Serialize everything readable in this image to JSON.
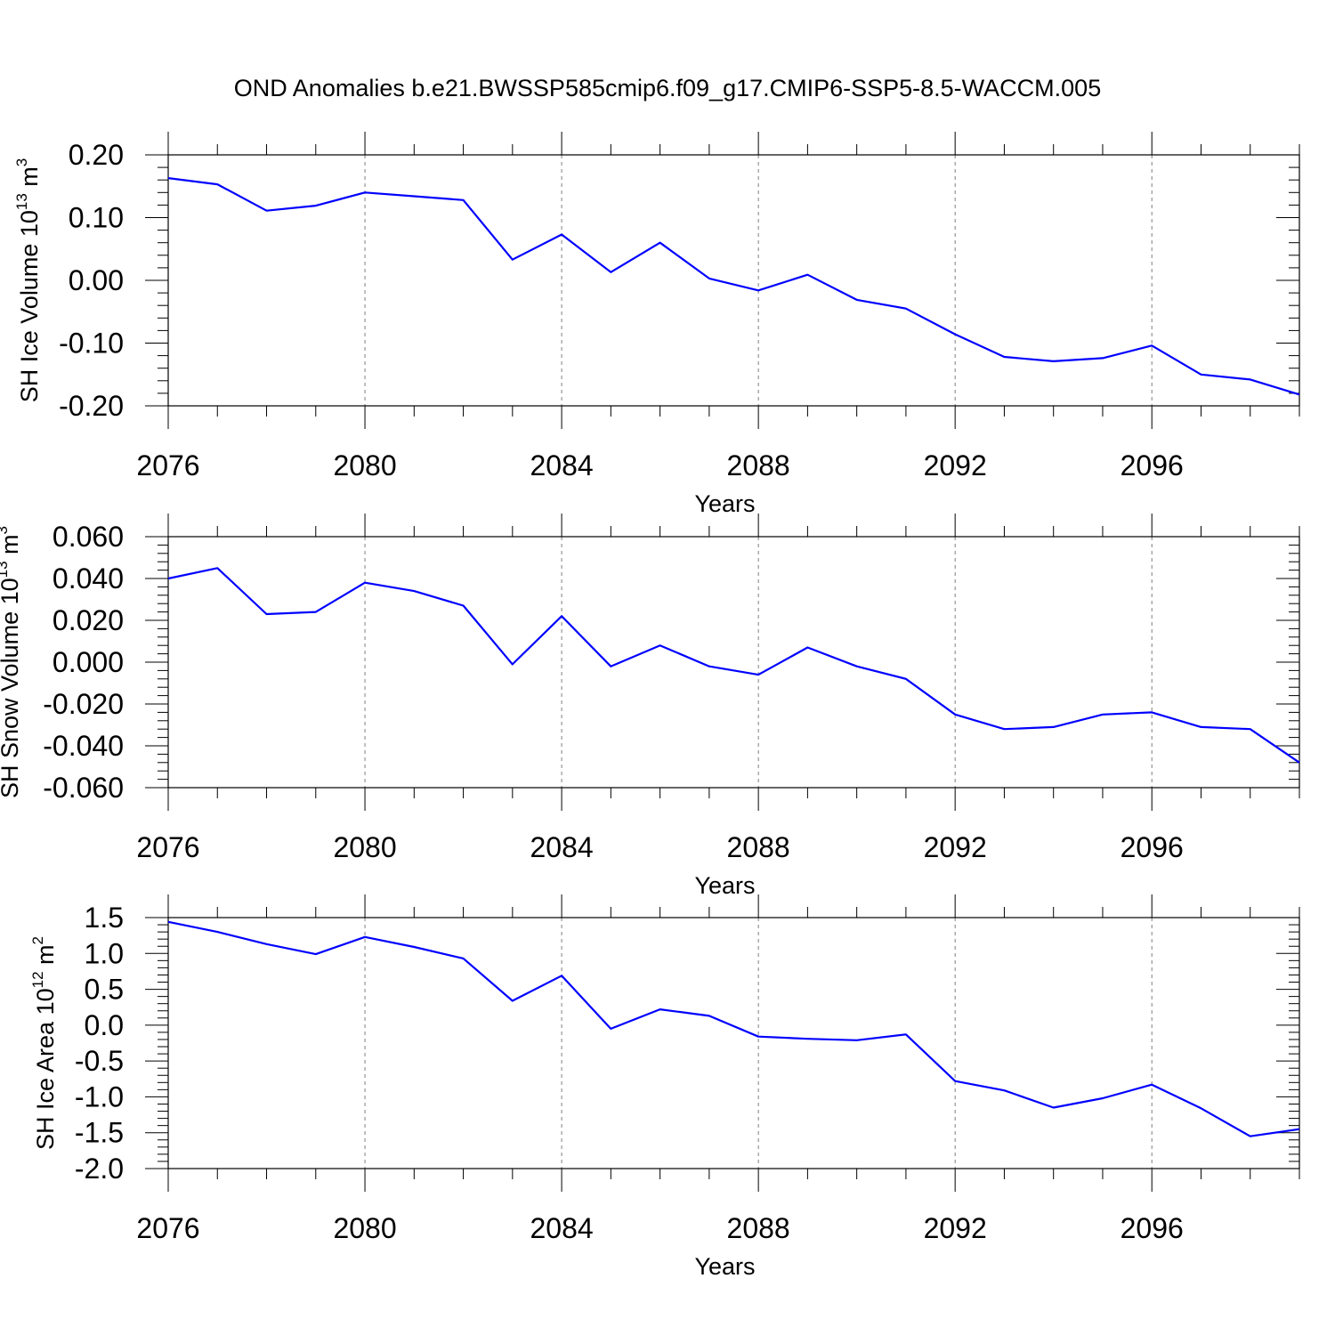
{
  "title": "OND Anomalies b.e21.BWSSP585cmip6.f09_g17.CMIP6-SSP5-8.5-WACCM.005",
  "colors": {
    "line": "#0000ff",
    "axis": "#000000",
    "grid": "#7f7f7f"
  },
  "chart_data": [
    {
      "type": "line",
      "ylabel": "SH Ice Volume",
      "ylabel_unit_base": "10",
      "ylabel_unit_exp": "13",
      "ylabel_unit_m": "m",
      "ylabel_unit_mexp": "3",
      "xlabel": "Years",
      "xlim": [
        2076,
        2099
      ],
      "ylim": [
        -0.2,
        0.2
      ],
      "x_ticks": [
        "2076",
        "2080",
        "2084",
        "2088",
        "2092",
        "2096"
      ],
      "y_ticks": [
        "0.20",
        "0.10",
        "0.00",
        "-0.10",
        "-0.20"
      ],
      "y_tick_values": [
        0.2,
        0.1,
        0.0,
        -0.1,
        -0.2
      ],
      "grid": "vertical dashed at major x ticks",
      "series": [
        {
          "x": [
            2076,
            2077,
            2078,
            2079,
            2080,
            2081,
            2082,
            2083,
            2084,
            2085,
            2086,
            2087,
            2088,
            2089,
            2090,
            2091,
            2092,
            2093,
            2094,
            2095,
            2096,
            2097,
            2098,
            2099
          ],
          "values": [
            0.163,
            0.153,
            0.111,
            0.119,
            0.14,
            0.134,
            0.128,
            0.033,
            0.073,
            0.013,
            0.06,
            0.003,
            -0.016,
            0.009,
            -0.031,
            -0.045,
            -0.086,
            -0.122,
            -0.129,
            -0.124,
            -0.104,
            -0.15,
            -0.158,
            -0.182
          ]
        }
      ]
    },
    {
      "type": "line",
      "ylabel": "SH Snow Volume",
      "ylabel_unit_base": "10",
      "ylabel_unit_exp": "13",
      "ylabel_unit_m": "m",
      "ylabel_unit_mexp": "3",
      "xlabel": "Years",
      "xlim": [
        2076,
        2099
      ],
      "ylim": [
        -0.06,
        0.06
      ],
      "x_ticks": [
        "2076",
        "2080",
        "2084",
        "2088",
        "2092",
        "2096"
      ],
      "y_ticks": [
        "0.060",
        "0.040",
        "0.020",
        "0.000",
        "-0.020",
        "-0.040",
        "-0.060"
      ],
      "y_tick_values": [
        0.06,
        0.04,
        0.02,
        0.0,
        -0.02,
        -0.04,
        -0.06
      ],
      "grid": "vertical dashed at major x ticks",
      "series": [
        {
          "x": [
            2076,
            2077,
            2078,
            2079,
            2080,
            2081,
            2082,
            2083,
            2084,
            2085,
            2086,
            2087,
            2088,
            2089,
            2090,
            2091,
            2092,
            2093,
            2094,
            2095,
            2096,
            2097,
            2098,
            2099
          ],
          "values": [
            0.04,
            0.045,
            0.023,
            0.024,
            0.038,
            0.034,
            0.027,
            -0.001,
            0.022,
            -0.002,
            0.008,
            -0.002,
            -0.006,
            0.007,
            -0.002,
            -0.008,
            -0.025,
            -0.032,
            -0.031,
            -0.025,
            -0.024,
            -0.031,
            -0.032,
            -0.048
          ]
        }
      ]
    },
    {
      "type": "line",
      "ylabel": "SH Ice Area",
      "ylabel_unit_base": "10",
      "ylabel_unit_exp": "12",
      "ylabel_unit_m": "m",
      "ylabel_unit_mexp": "2",
      "xlabel": "Years",
      "xlim": [
        2076,
        2099
      ],
      "ylim": [
        -2.0,
        1.5
      ],
      "x_ticks": [
        "2076",
        "2080",
        "2084",
        "2088",
        "2092",
        "2096"
      ],
      "y_ticks": [
        "1.5",
        "1.0",
        "0.5",
        "0.0",
        "-0.5",
        "-1.0",
        "-1.5",
        "-2.0"
      ],
      "y_tick_values": [
        1.5,
        1.0,
        0.5,
        0.0,
        -0.5,
        -1.0,
        -1.5,
        -2.0
      ],
      "grid": "vertical dashed at major x ticks",
      "series": [
        {
          "x": [
            2076,
            2077,
            2078,
            2079,
            2080,
            2081,
            2082,
            2083,
            2084,
            2085,
            2086,
            2087,
            2088,
            2089,
            2090,
            2091,
            2092,
            2093,
            2094,
            2095,
            2096,
            2097,
            2098,
            2099
          ],
          "values": [
            1.44,
            1.3,
            1.13,
            0.99,
            1.23,
            1.09,
            0.93,
            0.34,
            0.69,
            -0.05,
            0.22,
            0.13,
            -0.16,
            -0.19,
            -0.21,
            -0.13,
            -0.78,
            -0.91,
            -1.15,
            -1.02,
            -0.83,
            -1.16,
            -1.55,
            -1.45
          ]
        }
      ]
    }
  ]
}
